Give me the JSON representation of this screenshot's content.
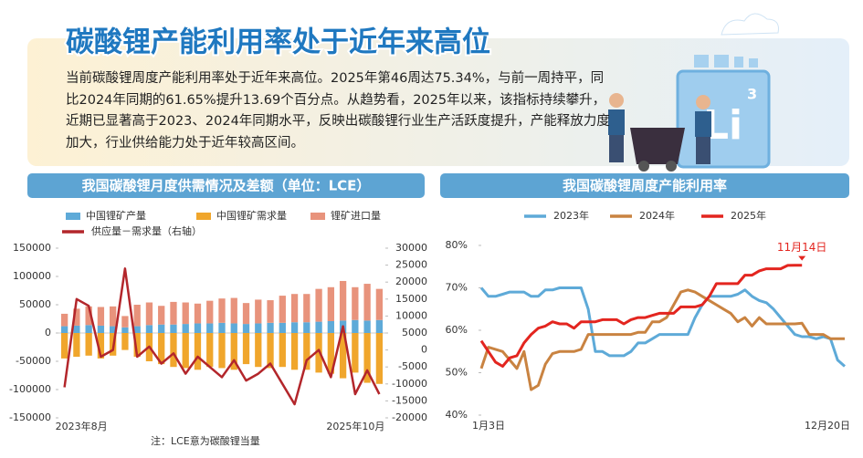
{
  "header": {
    "title": "碳酸锂产能利用率处于近年来高位",
    "text": "当前碳酸锂周度产能利用率处于近年来高位。2025年第46周达75.34%，与前一周持平，同比2024年同期的61.65%提升13.69个百分点。从趋势看，2025年以来，该指标持续攀升，近期已显著高于2023、2024年同期水平，反映出碳酸锂行业生产活跃度提升，产能释放力度加大，行业供给能力处于近年较高区间。"
  },
  "illustration": {
    "element": "Li",
    "number": "3"
  },
  "chart_data": [
    {
      "type": "combo",
      "title": "我国碳酸锂月度供需情况及差额（单位：LCE）",
      "categories": [
        "2023年8月",
        null,
        null,
        null,
        null,
        null,
        null,
        null,
        null,
        null,
        null,
        null,
        null,
        null,
        null,
        null,
        null,
        null,
        null,
        null,
        null,
        null,
        null,
        null,
        null,
        null,
        "2025年10月"
      ],
      "series": [
        {
          "name": "中国锂矿产量",
          "type": "bar",
          "color": "#5eaad8",
          "values": [
            12000,
            13000,
            14000,
            13000,
            12000,
            10000,
            12000,
            14000,
            15000,
            15000,
            16000,
            17000,
            17000,
            18000,
            17000,
            16000,
            17000,
            18000,
            18000,
            19000,
            19000,
            20000,
            21000,
            22000,
            23000,
            22000,
            23000
          ]
        },
        {
          "name": "中国锂矿需求量",
          "type": "bar",
          "color": "#f0a62c",
          "values": [
            -45000,
            -42000,
            -40000,
            -45000,
            -40000,
            -30000,
            -42000,
            -50000,
            -55000,
            -60000,
            -62000,
            -65000,
            -60000,
            -62000,
            -65000,
            -55000,
            -60000,
            -62000,
            -60000,
            -65000,
            -65000,
            -70000,
            -72000,
            -80000,
            -70000,
            -88000,
            -90000
          ]
        },
        {
          "name": "锂矿进口量",
          "type": "bar",
          "color": "#e8937c",
          "values": [
            22000,
            30000,
            33000,
            33000,
            35000,
            20000,
            38000,
            40000,
            33000,
            40000,
            38000,
            35000,
            40000,
            43000,
            45000,
            37000,
            42000,
            40000,
            48000,
            50000,
            50000,
            58000,
            60000,
            70000,
            58000,
            65000,
            55000
          ]
        },
        {
          "name": "供应量－需求量（右轴）",
          "type": "line",
          "axis": "y2",
          "color": "#b3262b",
          "values": [
            -11000,
            15000,
            13000,
            -2000,
            0,
            24000,
            -2000,
            1000,
            -4000,
            -1000,
            -7000,
            -2000,
            -5000,
            -8000,
            -3000,
            -9000,
            -7000,
            -4000,
            -10000,
            -16000,
            -3000,
            0,
            -8000,
            7000,
            -13000,
            -6000,
            -13000
          ]
        }
      ],
      "ylim": [
        -150000,
        150000
      ],
      "yticks": [
        -150000,
        -100000,
        -50000,
        0,
        50000,
        100000,
        150000
      ],
      "y2lim": [
        -20000,
        30000
      ],
      "y2ticks": [
        -20000,
        -15000,
        -10000,
        -5000,
        0,
        5000,
        10000,
        15000,
        20000,
        25000,
        30000
      ],
      "grid": false,
      "legend": "top"
    },
    {
      "type": "line",
      "title": "我国碳酸锂周度产能利用率",
      "categories": [
        "1月3日",
        null,
        null,
        null,
        null,
        null,
        null,
        null,
        null,
        null,
        null,
        null,
        null,
        null,
        null,
        null,
        null,
        null,
        null,
        null,
        null,
        null,
        null,
        null,
        null,
        null,
        null,
        null,
        null,
        null,
        null,
        null,
        null,
        null,
        null,
        null,
        null,
        null,
        null,
        null,
        null,
        null,
        null,
        null,
        null,
        null,
        null,
        null,
        null,
        null,
        null,
        "12月20日"
      ],
      "series": [
        {
          "name": "2023年",
          "color": "#5eaad8",
          "values": [
            70,
            68,
            68,
            68.5,
            69,
            69,
            69,
            68,
            68,
            69.5,
            69.5,
            70,
            70,
            70,
            70,
            65,
            55,
            55,
            54,
            54,
            54,
            55,
            57,
            57,
            58,
            59,
            59,
            59,
            59,
            59,
            63,
            66,
            68,
            68,
            68,
            68,
            68.5,
            69.5,
            68,
            67,
            66.5,
            65,
            63,
            61,
            59,
            58.5,
            58.5,
            58,
            58.5,
            58,
            53,
            51.5
          ]
        },
        {
          "name": "2024年",
          "color": "#c98341",
          "values": [
            51,
            56,
            55.5,
            55,
            53,
            51,
            55,
            46,
            47,
            52,
            54.5,
            55,
            55,
            55,
            55.5,
            59,
            59,
            59,
            59,
            59,
            59,
            59,
            59.5,
            59.5,
            62,
            62,
            63,
            66,
            69,
            69.5,
            69,
            68,
            67,
            66,
            65,
            64,
            62,
            63,
            61,
            63,
            61.5,
            61.5,
            61.5,
            61.5,
            61.5,
            61.65,
            59,
            59,
            59,
            58,
            58,
            58
          ]
        },
        {
          "name": "2025年",
          "color": "#e3251f",
          "values": [
            57.5,
            55,
            52.5,
            51.5,
            53.5,
            54,
            57,
            59,
            60.5,
            61,
            62,
            61.5,
            61.5,
            60.5,
            62,
            62,
            62,
            62.5,
            62.5,
            62.5,
            61.5,
            62.5,
            63,
            63,
            63.5,
            64,
            64,
            64,
            65.5,
            65.5,
            65.5,
            66,
            68,
            71,
            71,
            71,
            71,
            73,
            73,
            74,
            74.5,
            74.5,
            74.5,
            75.3,
            75.34,
            75.34,
            null,
            null,
            null,
            null,
            null,
            null
          ]
        }
      ],
      "ylim": [
        40,
        80
      ],
      "yticks": [
        {
          "value": 40,
          "label": "40%"
        },
        {
          "value": 50,
          "label": "50%"
        },
        {
          "value": 60,
          "label": "60%"
        },
        {
          "value": 70,
          "label": "70%"
        },
        {
          "value": 80,
          "label": "80%"
        }
      ],
      "annotation": "11月14日",
      "grid": false,
      "legend": "top"
    }
  ],
  "note": "注：LCE意为碳酸锂当量"
}
